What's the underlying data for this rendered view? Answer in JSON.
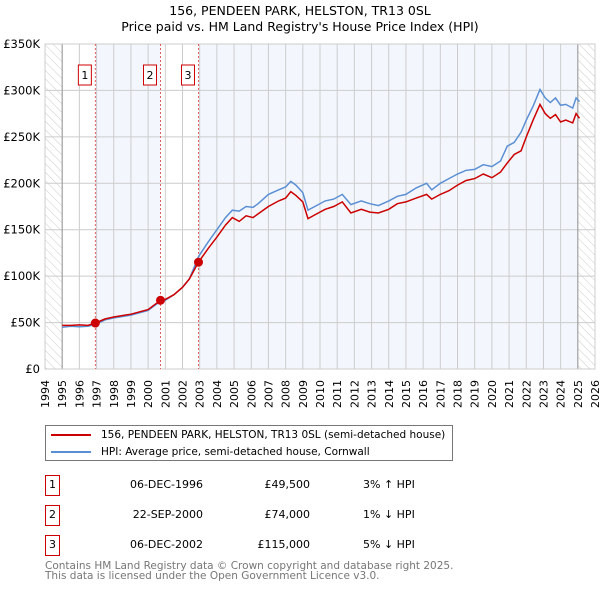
{
  "chart_data": {
    "type": "line",
    "title": "156, PENDEEN PARK, HELSTON, TR13 0SL",
    "subtitle": "Price paid vs. HM Land Registry's House Price Index (HPI)",
    "xlim": [
      1994,
      2026
    ],
    "ylim": [
      0,
      350000
    ],
    "x_ticks": [
      "1994",
      "1995",
      "1996",
      "1997",
      "1998",
      "1999",
      "2000",
      "2001",
      "2002",
      "2003",
      "2004",
      "2005",
      "2006",
      "2007",
      "2008",
      "2009",
      "2010",
      "2011",
      "2012",
      "2013",
      "2014",
      "2015",
      "2016",
      "2017",
      "2018",
      "2019",
      "2020",
      "2021",
      "2022",
      "2023",
      "2024",
      "2025",
      "2026"
    ],
    "y_ticks": [
      {
        "v": 0,
        "label": "£0"
      },
      {
        "v": 50000,
        "label": "£50K"
      },
      {
        "v": 100000,
        "label": "£100K"
      },
      {
        "v": 150000,
        "label": "£150K"
      },
      {
        "v": 200000,
        "label": "£200K"
      },
      {
        "v": 250000,
        "label": "£250K"
      },
      {
        "v": 300000,
        "label": "£300K"
      },
      {
        "v": 350000,
        "label": "£350K"
      }
    ],
    "grid": true,
    "series": [
      {
        "name": "156, PENDEEN PARK, HELSTON, TR13 0SL (semi-detached house)",
        "color": "#cc0000",
        "x": [
          1995.0,
          1995.5,
          1996.0,
          1996.5,
          1996.93,
          1997.5,
          1998,
          1999,
          2000,
          2000.72,
          2001,
          2001.5,
          2002,
          2002.4,
          2002.93,
          2003.5,
          2004,
          2004.5,
          2004.9,
          2005.3,
          2005.7,
          2006.1,
          2006.4,
          2007,
          2007.6,
          2008.0,
          2008.3,
          2008.6,
          2009.0,
          2009.3,
          2009.7,
          2010.3,
          2010.8,
          2011.3,
          2011.8,
          2012.4,
          2012.9,
          2013.4,
          2014,
          2014.5,
          2015,
          2015.6,
          2016.2,
          2016.5,
          2017,
          2017.5,
          2018,
          2018.5,
          2019,
          2019.5,
          2020,
          2020.5,
          2020.9,
          2021.3,
          2021.7,
          2022.0,
          2022.4,
          2022.8,
          2023.1,
          2023.4,
          2023.7,
          2024.0,
          2024.3,
          2024.7,
          2024.9,
          2025.1
        ],
        "y": [
          47000,
          47000,
          47500,
          47000,
          49500,
          54000,
          56000,
          59000,
          64000,
          74000,
          75000,
          80000,
          88000,
          97000,
          115000,
          130000,
          142000,
          155000,
          163000,
          159000,
          165000,
          163000,
          167000,
          175000,
          181000,
          184000,
          191000,
          187000,
          180000,
          162000,
          166000,
          172000,
          175000,
          180000,
          168000,
          172000,
          169000,
          168000,
          172000,
          178000,
          180000,
          184000,
          188000,
          183000,
          188000,
          192000,
          198000,
          203000,
          205000,
          210000,
          206000,
          212000,
          222000,
          231000,
          235000,
          250000,
          268000,
          285000,
          275000,
          270000,
          274000,
          266000,
          268000,
          265000,
          275000,
          270000
        ]
      },
      {
        "name": "HPI: Average price, semi-detached house, Cornwall",
        "color": "#5b8fd4",
        "x": [
          1995.0,
          1995.5,
          1996.0,
          1996.5,
          1996.93,
          1997.5,
          1998,
          1999,
          2000,
          2000.72,
          2001,
          2001.5,
          2002,
          2002.4,
          2002.93,
          2003.5,
          2004,
          2004.5,
          2004.9,
          2005.3,
          2005.7,
          2006.1,
          2006.4,
          2007,
          2007.6,
          2008.0,
          2008.3,
          2008.6,
          2009.0,
          2009.3,
          2009.7,
          2010.3,
          2010.8,
          2011.3,
          2011.8,
          2012.4,
          2012.9,
          2013.4,
          2014,
          2014.5,
          2015,
          2015.6,
          2016.2,
          2016.5,
          2017,
          2017.5,
          2018,
          2018.5,
          2019,
          2019.5,
          2020,
          2020.5,
          2020.9,
          2021.3,
          2021.7,
          2022.0,
          2022.4,
          2022.8,
          2023.1,
          2023.4,
          2023.7,
          2024.0,
          2024.3,
          2024.7,
          2024.9,
          2025.1
        ],
        "y": [
          45000,
          46000,
          45500,
          46000,
          48000,
          53000,
          55000,
          58000,
          63000,
          73000,
          74000,
          80000,
          88000,
          97000,
          121000,
          137000,
          150000,
          163000,
          171000,
          170000,
          175000,
          174000,
          178000,
          188000,
          193000,
          196000,
          202000,
          198000,
          190000,
          171000,
          175000,
          181000,
          183000,
          188000,
          177000,
          181000,
          178000,
          176000,
          181000,
          186000,
          188000,
          195000,
          200000,
          193000,
          200000,
          205000,
          210000,
          214000,
          215000,
          220000,
          218000,
          224000,
          240000,
          244000,
          255000,
          268000,
          283000,
          301000,
          292000,
          287000,
          292000,
          284000,
          285000,
          281000,
          292000,
          288000
        ]
      }
    ],
    "sales": [
      {
        "label": "1",
        "x": 1996.93,
        "price": 49500
      },
      {
        "label": "2",
        "x": 2000.72,
        "price": 74000
      },
      {
        "label": "3",
        "x": 2002.93,
        "price": 115000
      }
    ],
    "data_range": [
      1995,
      2025
    ]
  },
  "legend": {
    "red": "156, PENDEEN PARK, HELSTON, TR13 0SL (semi-detached house)",
    "blue": "HPI: Average price, semi-detached house, Cornwall"
  },
  "table": [
    {
      "n": "1",
      "date": "06-DEC-1996",
      "price": "£49,500",
      "hpi": "3% ↑ HPI"
    },
    {
      "n": "2",
      "date": "22-SEP-2000",
      "price": "£74,000",
      "hpi": "1% ↓ HPI"
    },
    {
      "n": "3",
      "date": "06-DEC-2002",
      "price": "£115,000",
      "hpi": "5% ↓ HPI"
    }
  ],
  "footer": {
    "line1": "Contains HM Land Registry data © Crown copyright and database right 2025.",
    "line2": "This data is licensed under the Open Government Licence v3.0."
  }
}
